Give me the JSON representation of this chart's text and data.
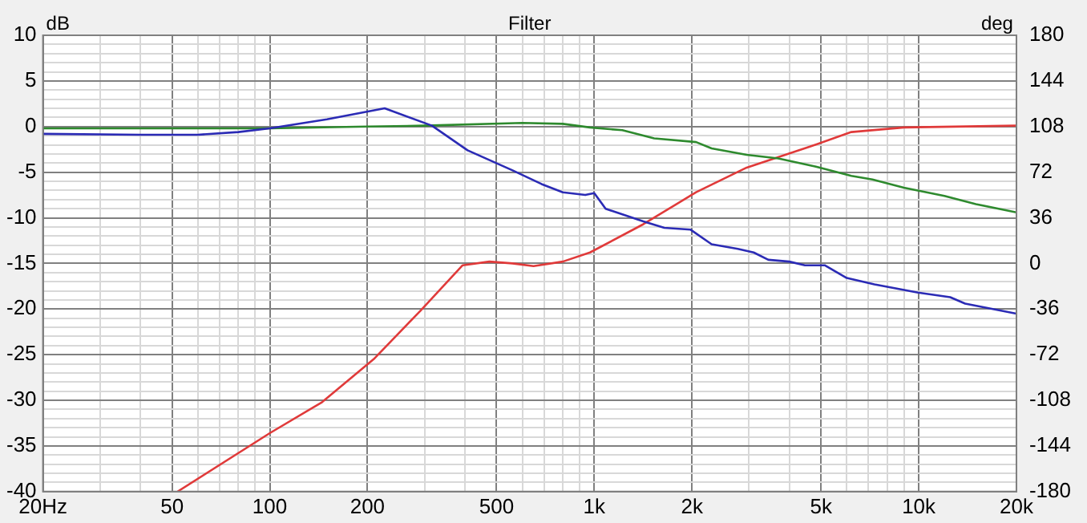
{
  "chart_data": {
    "type": "line",
    "title": "Filter",
    "ylabel": "dB",
    "y2label": "deg",
    "log": "x",
    "grid": true,
    "legend": false,
    "marker": "none",
    "line_style": "solid",
    "xlim": [
      20,
      20000
    ],
    "xticks": [
      {
        "value": 20,
        "label": "20Hz"
      },
      {
        "value": 30,
        "label": null
      },
      {
        "value": 40,
        "label": null
      },
      50,
      {
        "value": 60,
        "label": null
      },
      {
        "value": 70,
        "label": null
      },
      {
        "value": 80,
        "label": null
      },
      {
        "value": 90,
        "label": null
      },
      100,
      200,
      {
        "value": 300,
        "label": null
      },
      {
        "value": 400,
        "label": null
      },
      500,
      {
        "value": 600,
        "label": null
      },
      {
        "value": 700,
        "label": null
      },
      {
        "value": 800,
        "label": null
      },
      {
        "value": 900,
        "label": null
      },
      {
        "value": 1000,
        "label": "1k"
      },
      {
        "value": 2000,
        "label": "2k"
      },
      {
        "value": 3000,
        "label": null
      },
      {
        "value": 4000,
        "label": null
      },
      {
        "value": 5000,
        "label": "5k"
      },
      {
        "value": 6000,
        "label": null
      },
      {
        "value": 7000,
        "label": null
      },
      {
        "value": 8000,
        "label": null
      },
      {
        "value": 9000,
        "label": null
      },
      {
        "value": 10000,
        "label": "10k"
      },
      {
        "value": 20000,
        "label": "20k"
      }
    ],
    "ylim": [
      -40,
      10
    ],
    "yticks": [
      -40,
      -35,
      -30,
      -25,
      -20,
      -15,
      -10,
      -5,
      0,
      5,
      10,
      {
        "value": -39,
        "label": null
      },
      {
        "value": -38,
        "label": null
      },
      {
        "value": -37,
        "label": null
      },
      {
        "value": -36,
        "label": null
      },
      {
        "value": -34,
        "label": null
      },
      {
        "value": -33,
        "label": null
      },
      {
        "value": -32,
        "label": null
      },
      {
        "value": -31,
        "label": null
      },
      {
        "value": -29,
        "label": null
      },
      {
        "value": -28,
        "label": null
      },
      {
        "value": -27,
        "label": null
      },
      {
        "value": -26,
        "label": null
      },
      {
        "value": -24,
        "label": null
      },
      {
        "value": -23,
        "label": null
      },
      {
        "value": -22,
        "label": null
      },
      {
        "value": -21,
        "label": null
      },
      {
        "value": -19,
        "label": null
      },
      {
        "value": -18,
        "label": null
      },
      {
        "value": -17,
        "label": null
      },
      {
        "value": -16,
        "label": null
      },
      {
        "value": -14,
        "label": null
      },
      {
        "value": -13,
        "label": null
      },
      {
        "value": -12,
        "label": null
      },
      {
        "value": -11,
        "label": null
      },
      {
        "value": -9,
        "label": null
      },
      {
        "value": -8,
        "label": null
      },
      {
        "value": -7,
        "label": null
      },
      {
        "value": -6,
        "label": null
      },
      {
        "value": -4,
        "label": null
      },
      {
        "value": -3,
        "label": null
      },
      {
        "value": -2,
        "label": null
      },
      {
        "value": -1,
        "label": null
      },
      {
        "value": 1,
        "label": null
      },
      {
        "value": 2,
        "label": null
      },
      {
        "value": 3,
        "label": null
      },
      {
        "value": 4,
        "label": null
      },
      {
        "value": 6,
        "label": null
      },
      {
        "value": 7,
        "label": null
      },
      {
        "value": 8,
        "label": null
      },
      {
        "value": 9,
        "label": null
      }
    ],
    "y2lim": [
      -180,
      180
    ],
    "y2ticks": [
      -180,
      -144,
      -108,
      -72,
      -36,
      0,
      36,
      72,
      108,
      144,
      180
    ],
    "series": [
      {
        "color": "#2b2bb5",
        "x": [
          20,
          40,
          60,
          80,
          100,
          150,
          226,
          316,
          407,
          560,
          688,
          800,
          938,
          1000,
          1084,
          1417,
          1644,
          1982,
          2300,
          2770,
          3100,
          3440,
          3990,
          4460,
          5130,
          6000,
          7300,
          9950,
          12500,
          13900,
          20000
        ],
        "values": [
          -0.8,
          -0.9,
          -0.9,
          -0.6,
          -0.2,
          0.8,
          2.0,
          0.1,
          -2.6,
          -4.8,
          -6.3,
          -7.2,
          -7.5,
          -7.3,
          -9.0,
          -10.4,
          -11.1,
          -11.3,
          -12.9,
          -13.4,
          -13.8,
          -14.6,
          -14.8,
          -15.2,
          -15.2,
          -16.6,
          -17.3,
          -18.2,
          -18.7,
          -19.4,
          -20.5
        ]
      },
      {
        "color": "#2e8a2e",
        "x": [
          20,
          50,
          100,
          200,
          300,
          600,
          800,
          970,
          1220,
          1530,
          2060,
          2300,
          2950,
          3690,
          4820,
          6200,
          7200,
          9000,
          12000,
          15000,
          20000
        ],
        "values": [
          -0.2,
          -0.2,
          -0.2,
          0,
          0.1,
          0.4,
          0.3,
          -0.1,
          -0.4,
          -1.3,
          -1.7,
          -2.4,
          -3.1,
          -3.5,
          -4.4,
          -5.4,
          -5.8,
          -6.7,
          -7.6,
          -8.5,
          -9.4
        ]
      },
      {
        "color": "#e03a3a",
        "x": [
          52,
          100,
          145,
          209,
          291,
          393,
          475,
          560,
          650,
          800,
          970,
          1417,
          2060,
          2950,
          4620,
          6200,
          9000,
          20000
        ],
        "values": [
          -40,
          -33.6,
          -30.2,
          -25.5,
          -20.2,
          -15.2,
          -14.8,
          -15.0,
          -15.3,
          -14.8,
          -13.8,
          -10.7,
          -7.2,
          -4.5,
          -2.2,
          -0.6,
          -0.1,
          0.1
        ]
      }
    ]
  }
}
